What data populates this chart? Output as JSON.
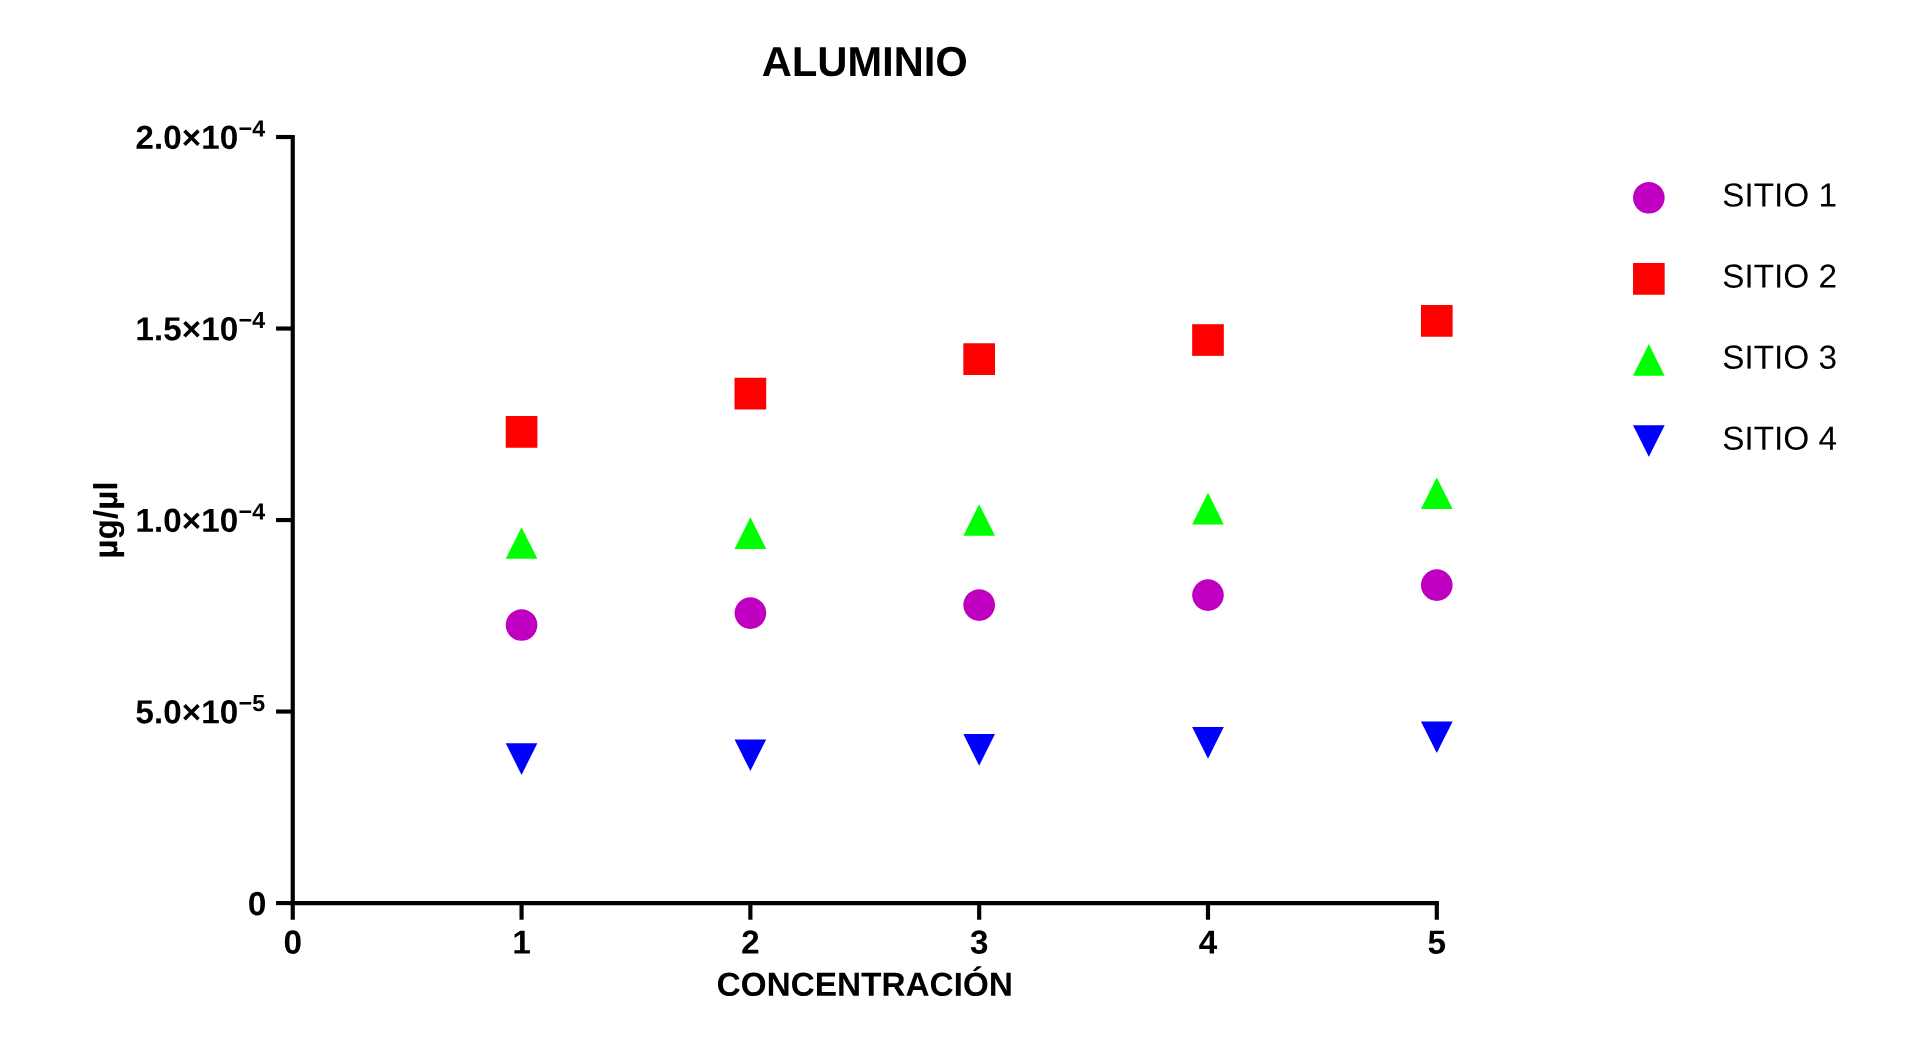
{
  "chart_data": {
    "type": "scatter",
    "title": "ALUMINIO",
    "xlabel": "CONCENTRACIÓN",
    "ylabel": "µg/µl",
    "x": [
      1,
      2,
      3,
      4,
      5
    ],
    "series": [
      {
        "name": "SITIO 1",
        "color": "#c000c0",
        "marker": "circle",
        "values": [
          7.26e-05,
          7.57e-05,
          7.78e-05,
          8.04e-05,
          8.3e-05
        ]
      },
      {
        "name": "SITIO 2",
        "color": "#ff0000",
        "marker": "square",
        "values": [
          0.000123,
          0.000133,
          0.000142,
          0.000147,
          0.000152
        ]
      },
      {
        "name": "SITIO 3",
        "color": "#00ff00",
        "marker": "triangle",
        "values": [
          9.4e-05,
          9.66e-05,
          0.0001,
          0.000103,
          0.000107
        ]
      },
      {
        "name": "SITIO 4",
        "color": "#0000ff",
        "marker": "triangle_down",
        "values": [
          3.76e-05,
          3.86e-05,
          4e-05,
          4.18e-05,
          4.33e-05
        ]
      }
    ],
    "xlim": [
      0,
      5
    ],
    "xticks": [
      0,
      1,
      2,
      3,
      4,
      5
    ],
    "ylim": [
      0,
      0.0002
    ],
    "yticks": [
      {
        "value": 0,
        "label": "0"
      },
      {
        "value": 5e-05,
        "label": "5.0×10$^{−5}$"
      },
      {
        "value": 0.0001,
        "label": "1.0×10$^{−4}$"
      },
      {
        "value": 0.00015,
        "label": "1.5×10$^{−4}$"
      },
      {
        "value": 0.0002,
        "label": "2.0×10$^{−4}$"
      }
    ],
    "grid": false,
    "legend": "right"
  }
}
